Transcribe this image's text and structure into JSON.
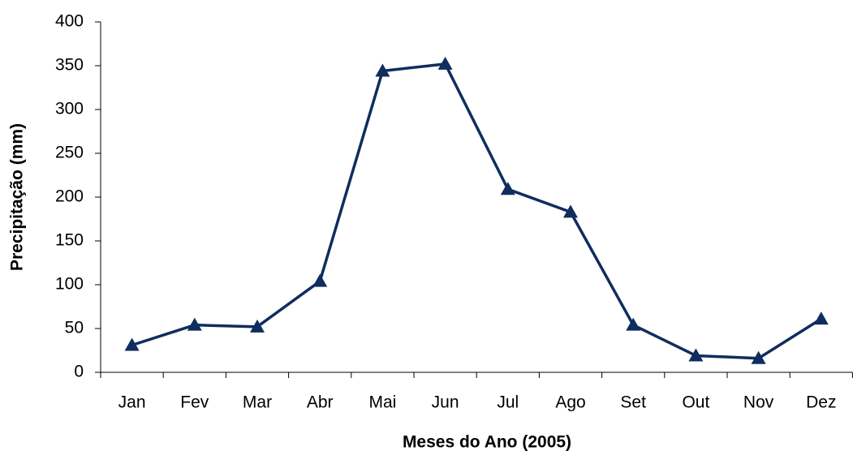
{
  "chart_data": {
    "type": "line",
    "xlabel": "Meses do Ano (2005)",
    "ylabel": "Precipitação (mm)",
    "categories": [
      "Jan",
      "Fev",
      "Mar",
      "Abr",
      "Mai",
      "Jun",
      "Jul",
      "Ago",
      "Set",
      "Out",
      "Nov",
      "Dez"
    ],
    "series": [
      {
        "color": "#0f2d5e",
        "values": [
          31,
          54,
          52,
          104,
          344,
          352,
          209,
          183,
          54,
          19,
          16,
          61
        ]
      }
    ],
    "ylim": [
      0,
      400
    ],
    "yticks": [
      0,
      50,
      100,
      150,
      200,
      250,
      300,
      350,
      400
    ],
    "grid": false,
    "marker": "triangle"
  }
}
